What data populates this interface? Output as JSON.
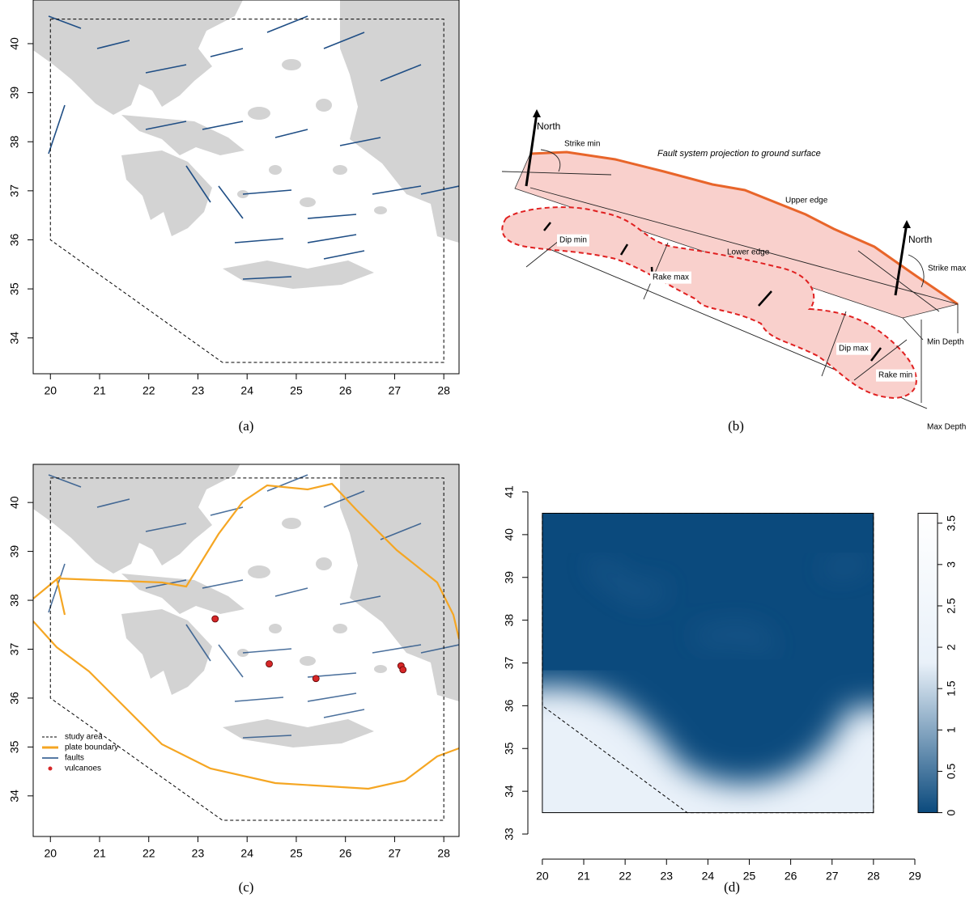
{
  "chart_data": [
    {
      "type": "map",
      "caption": "(a)",
      "xlim": [
        19.65,
        28.31
      ],
      "ylim": [
        33.27,
        40.89
      ],
      "xticks": [
        20,
        21,
        22,
        23,
        24,
        25,
        26,
        27,
        28
      ],
      "yticks": [
        34,
        35,
        36,
        37,
        38,
        39,
        40
      ],
      "study_area": {
        "x": [
          20,
          28,
          28,
          23.5,
          20,
          20
        ],
        "y": [
          40.5,
          40.5,
          33.5,
          33.5,
          36,
          40.5
        ]
      }
    },
    {
      "type": "diagram",
      "caption": "(b)",
      "labels": [
        "North",
        "Strike min",
        "Fault system projection to ground surface",
        "Upper edge",
        "North",
        "Strike max",
        "Lower edge",
        "Dip min",
        "Rake max",
        "Min Depth",
        "Dip max",
        "Rake min",
        "Max Depth"
      ]
    },
    {
      "type": "map",
      "caption": "(c)",
      "xlim": [
        19.65,
        28.31
      ],
      "ylim": [
        33.17,
        40.78
      ],
      "xticks": [
        20,
        21,
        22,
        23,
        24,
        25,
        26,
        27,
        28
      ],
      "yticks": [
        34,
        35,
        36,
        37,
        38,
        39,
        40
      ],
      "study_area": {
        "x": [
          20,
          28,
          28,
          23.5,
          20,
          20
        ],
        "y": [
          40.5,
          40.5,
          33.5,
          33.5,
          36,
          40.5
        ]
      },
      "series": [
        {
          "name": "study area",
          "color": "#000000"
        },
        {
          "name": "plate boundary",
          "color": "#f5a623"
        },
        {
          "name": "faults",
          "color": "#1f4e85"
        },
        {
          "name": "vulcanoes",
          "color": "#d62728",
          "x": [
            23.35,
            24.45,
            25.4,
            27.13,
            27.17
          ],
          "y": [
            37.62,
            36.7,
            36.4,
            36.66,
            36.58
          ]
        }
      ]
    },
    {
      "type": "heatmap",
      "caption": "(d)",
      "xlim": [
        19.65,
        29
      ],
      "ylim": [
        33,
        41
      ],
      "xticks": [
        20,
        21,
        22,
        23,
        24,
        25,
        26,
        27,
        28,
        29
      ],
      "yticks": [
        33,
        34,
        35,
        36,
        37,
        38,
        39,
        40,
        41
      ],
      "extent": {
        "x": [
          20,
          28
        ],
        "y": [
          33.5,
          40.5
        ]
      },
      "study_area": {
        "x": [
          20,
          28,
          28,
          23.5,
          20,
          20
        ],
        "y": [
          40.5,
          40.5,
          33.5,
          33.5,
          36,
          40.5
        ]
      },
      "zlim": [
        0,
        3.62
      ],
      "zticks": [
        0,
        0.5,
        1,
        1.5,
        2,
        2.5,
        3,
        3.5
      ],
      "colors": [
        "#0b4a7d",
        "#e9f1f9",
        "#ffffff"
      ]
    }
  ]
}
